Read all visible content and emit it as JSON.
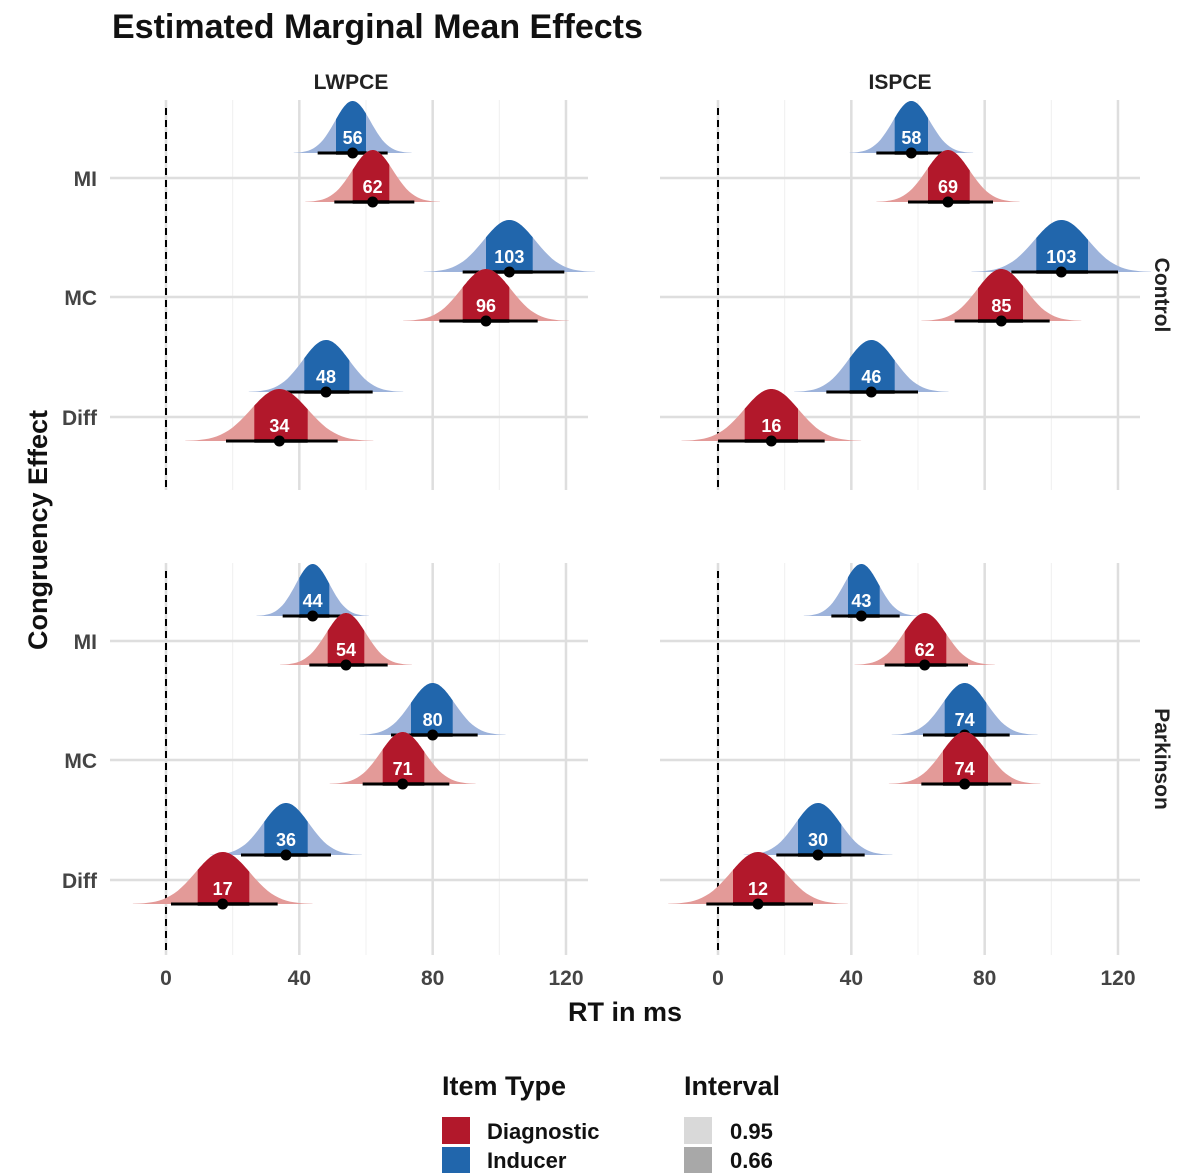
{
  "chart_data": {
    "type": "halfeye",
    "title": "Estimated Marginal Mean Effects",
    "xlabel": "RT in ms",
    "ylabel": "Congruency Effect",
    "xlim": [
      -3,
      125
    ],
    "x_ticks": [
      0,
      40,
      80,
      120
    ],
    "x_tick_labels": [
      "0",
      "40",
      "80",
      "120"
    ],
    "reference_line": 0,
    "rows": [
      "MI",
      "MC",
      "Diff"
    ],
    "col_facets": [
      "LWPCE",
      "ISPCE"
    ],
    "row_facets": [
      "Control",
      "Parkinson"
    ],
    "legend": {
      "item_type": {
        "title": "Item Type",
        "entries": [
          {
            "name": "Diagnostic",
            "color": "#B2182B"
          },
          {
            "name": "Inducer",
            "color": "#2166AC"
          }
        ]
      },
      "interval": {
        "title": "Interval",
        "entries": [
          {
            "name": "0.95",
            "color": "#D9D9D9"
          },
          {
            "name": "0.66",
            "color": "#A8A8A8"
          }
        ]
      }
    },
    "panels": [
      {
        "col": "LWPCE",
        "row": "Control",
        "points": [
          {
            "effect": "MI",
            "type": "Inducer",
            "estimate": 56,
            "lo95": 45.5,
            "hi95": 66.5,
            "lo66": 51,
            "hi66": 60
          },
          {
            "effect": "MI",
            "type": "Diagnostic",
            "estimate": 62,
            "lo95": 50.5,
            "hi95": 74.5,
            "lo66": 56,
            "hi66": 67
          },
          {
            "effect": "MC",
            "type": "Inducer",
            "estimate": 103,
            "lo95": 89,
            "hi95": 119.5,
            "lo66": 96,
            "hi66": 110
          },
          {
            "effect": "MC",
            "type": "Diagnostic",
            "estimate": 96,
            "lo95": 82,
            "hi95": 111.5,
            "lo66": 89,
            "hi66": 103
          },
          {
            "effect": "Diff",
            "type": "Inducer",
            "estimate": 48,
            "lo95": 34.5,
            "hi95": 62,
            "lo66": 41.5,
            "hi66": 55
          },
          {
            "effect": "Diff",
            "type": "Diagnostic",
            "estimate": 34,
            "lo95": 18,
            "hi95": 51.5,
            "lo66": 26.5,
            "hi66": 42.5
          }
        ]
      },
      {
        "col": "ISPCE",
        "row": "Control",
        "points": [
          {
            "effect": "MI",
            "type": "Inducer",
            "estimate": 58,
            "lo95": 47.5,
            "hi95": 69.5,
            "lo66": 53,
            "hi66": 63
          },
          {
            "effect": "MI",
            "type": "Diagnostic",
            "estimate": 69,
            "lo95": 57,
            "hi95": 82.5,
            "lo66": 63,
            "hi66": 75.5
          },
          {
            "effect": "MC",
            "type": "Inducer",
            "estimate": 103,
            "lo95": 88,
            "hi95": 120,
            "lo66": 95.5,
            "hi66": 111
          },
          {
            "effect": "MC",
            "type": "Diagnostic",
            "estimate": 85,
            "lo95": 71,
            "hi95": 99.5,
            "lo66": 78,
            "hi66": 91.5
          },
          {
            "effect": "Diff",
            "type": "Inducer",
            "estimate": 46,
            "lo95": 32.5,
            "hi95": 60,
            "lo66": 39.5,
            "hi66": 53
          },
          {
            "effect": "Diff",
            "type": "Diagnostic",
            "estimate": 16,
            "lo95": 0,
            "hi95": 32,
            "lo66": 8,
            "hi66": 24
          }
        ]
      },
      {
        "col": "LWPCE",
        "row": "Parkinson",
        "points": [
          {
            "effect": "MI",
            "type": "Inducer",
            "estimate": 44,
            "lo95": 35,
            "hi95": 55,
            "lo66": 40,
            "hi66": 49
          },
          {
            "effect": "MI",
            "type": "Diagnostic",
            "estimate": 54,
            "lo95": 43,
            "hi95": 66.5,
            "lo66": 48.5,
            "hi66": 59.5
          },
          {
            "effect": "MC",
            "type": "Inducer",
            "estimate": 80,
            "lo95": 67.5,
            "hi95": 93.5,
            "lo66": 73.5,
            "hi66": 86
          },
          {
            "effect": "MC",
            "type": "Diagnostic",
            "estimate": 71,
            "lo95": 59,
            "hi95": 85,
            "lo66": 65,
            "hi66": 77.5
          },
          {
            "effect": "Diff",
            "type": "Inducer",
            "estimate": 36,
            "lo95": 22.5,
            "hi95": 49.5,
            "lo66": 29.5,
            "hi66": 42.5
          },
          {
            "effect": "Diff",
            "type": "Diagnostic",
            "estimate": 17,
            "lo95": 1.5,
            "hi95": 33.5,
            "lo66": 9.5,
            "hi66": 25
          }
        ]
      },
      {
        "col": "ISPCE",
        "row": "Parkinson",
        "points": [
          {
            "effect": "MI",
            "type": "Inducer",
            "estimate": 43,
            "lo95": 34,
            "hi95": 54.5,
            "lo66": 39,
            "hi66": 48.5
          },
          {
            "effect": "MI",
            "type": "Diagnostic",
            "estimate": 62,
            "lo95": 50,
            "hi95": 75,
            "lo66": 56,
            "hi66": 68.5
          },
          {
            "effect": "MC",
            "type": "Inducer",
            "estimate": 74,
            "lo95": 61.5,
            "hi95": 87.5,
            "lo66": 68,
            "hi66": 80.5
          },
          {
            "effect": "MC",
            "type": "Diagnostic",
            "estimate": 74,
            "lo95": 61,
            "hi95": 88,
            "lo66": 67.5,
            "hi66": 81
          },
          {
            "effect": "Diff",
            "type": "Inducer",
            "estimate": 30,
            "lo95": 17.5,
            "hi95": 44,
            "lo66": 24,
            "hi66": 37
          },
          {
            "effect": "Diff",
            "type": "Diagnostic",
            "estimate": 12,
            "lo95": -3.5,
            "hi95": 28.5,
            "lo66": 4.5,
            "hi66": 20
          }
        ]
      }
    ]
  }
}
